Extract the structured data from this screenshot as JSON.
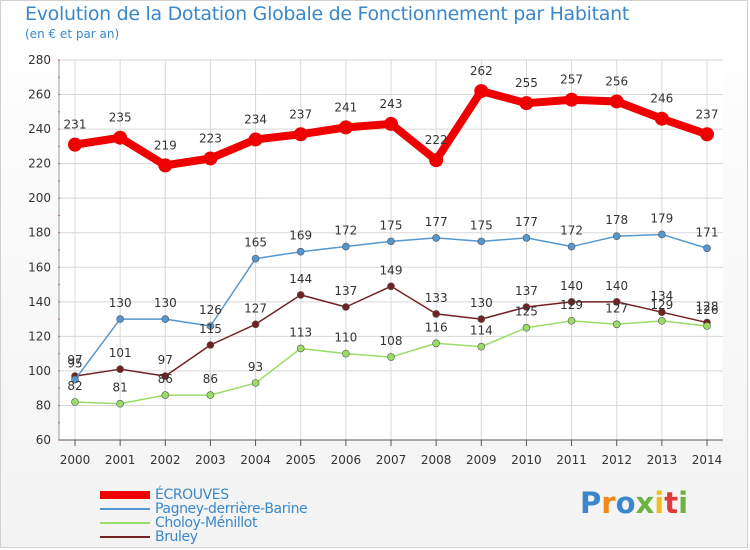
{
  "chart_data": {
    "type": "line",
    "title": "Evolution de la Dotation Globale de Fonctionnement par Habitant",
    "subtitle": "(en € et par an)",
    "xlabel": "",
    "ylabel": "",
    "ylim": [
      60,
      280
    ],
    "yticks": [
      60,
      80,
      100,
      120,
      140,
      160,
      180,
      200,
      220,
      240,
      260,
      280
    ],
    "grid": true,
    "legend_position": "bottom-left",
    "categories": [
      "2000",
      "2001",
      "2002",
      "2003",
      "2004",
      "2005",
      "2006",
      "2007",
      "2008",
      "2009",
      "2010",
      "2011",
      "2012",
      "2013",
      "2014"
    ],
    "series": [
      {
        "name": "ÉCROUVES",
        "color": "#ee0000",
        "values": [
          231,
          235,
          219,
          223,
          234,
          237,
          241,
          243,
          222,
          262,
          255,
          257,
          256,
          246,
          237
        ]
      },
      {
        "name": "Pagney-derrière-Barine",
        "color": "#5597cf",
        "values": [
          95,
          130,
          130,
          126,
          165,
          169,
          172,
          175,
          177,
          175,
          177,
          172,
          178,
          179,
          171
        ]
      },
      {
        "name": "Choloy-Ménillot",
        "color": "#99dd66",
        "values": [
          82,
          81,
          86,
          86,
          93,
          113,
          110,
          108,
          116,
          114,
          125,
          129,
          127,
          129,
          126
        ]
      },
      {
        "name": "Bruley",
        "color": "#722222",
        "values": [
          97,
          101,
          97,
          115,
          127,
          144,
          137,
          149,
          133,
          130,
          137,
          140,
          140,
          134,
          128
        ]
      }
    ]
  },
  "brand": {
    "letters": [
      "P",
      "r",
      "o",
      "x",
      "i",
      "t",
      "i"
    ],
    "colors": [
      "#3a87c9",
      "#f28a1b",
      "#3a87c9",
      "#6cb33f",
      "#f2c01b",
      "#e03a3a",
      "#6cb33f"
    ]
  }
}
